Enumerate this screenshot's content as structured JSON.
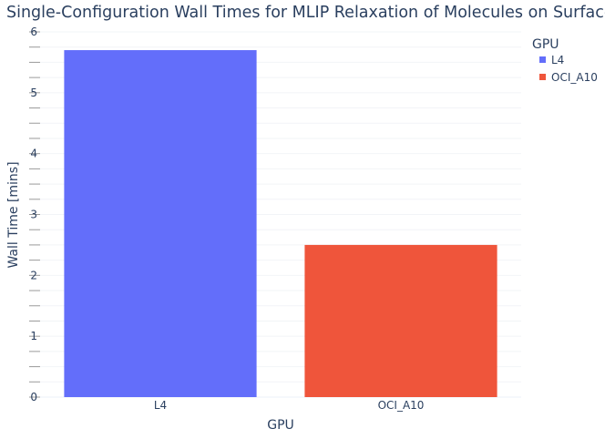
{
  "chart_data": {
    "type": "bar",
    "title": "Single-Configuration Wall Times for MLIP Relaxation of Molecules on Surfaces",
    "xlabel": "GPU",
    "ylabel": "Wall Time [mins]",
    "categories": [
      "L4",
      "OCI_A10"
    ],
    "values": [
      5.7,
      2.5
    ],
    "colors": [
      "#636efa",
      "#ef553b"
    ],
    "ylim": [
      0,
      6
    ],
    "yticks": [
      0,
      1,
      2,
      3,
      4,
      5,
      6
    ],
    "y_minor_ticks_per_unit": 4,
    "grid": true,
    "legend": {
      "title": "GPU",
      "placement": "top-right",
      "entries": [
        "L4",
        "OCI_A10"
      ]
    }
  }
}
